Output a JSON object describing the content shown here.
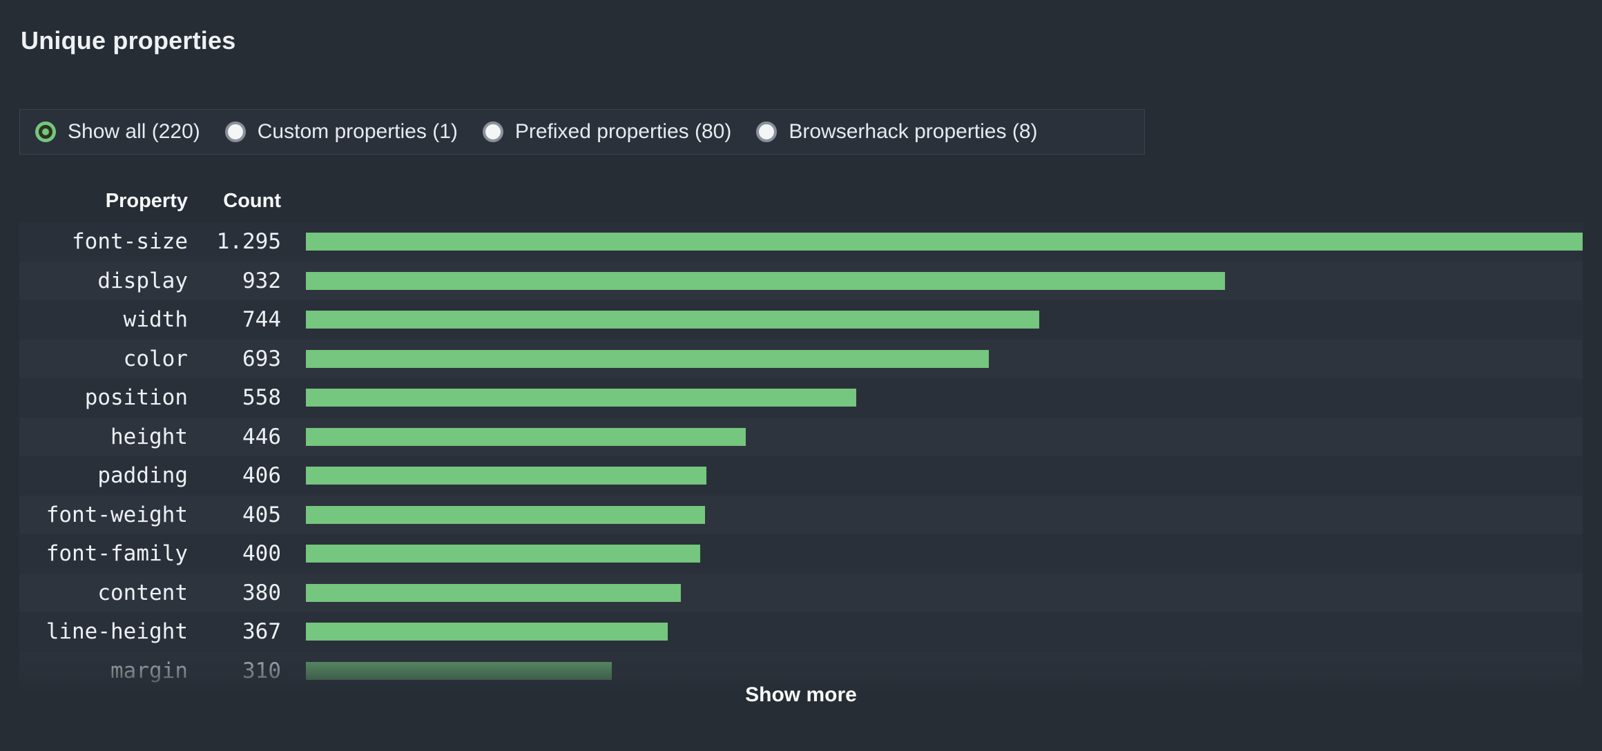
{
  "title": "Unique properties",
  "filters": [
    {
      "label": "Show all (220)",
      "selected": true
    },
    {
      "label": "Custom properties (1)",
      "selected": false
    },
    {
      "label": "Prefixed properties (80)",
      "selected": false
    },
    {
      "label": "Browserhack properties (8)",
      "selected": false
    }
  ],
  "table": {
    "headers": {
      "property": "Property",
      "count": "Count"
    },
    "max_value": 1295,
    "rows": [
      {
        "property": "font-size",
        "count": "1.295",
        "value": 1295
      },
      {
        "property": "display",
        "count": "932",
        "value": 932
      },
      {
        "property": "width",
        "count": "744",
        "value": 744
      },
      {
        "property": "color",
        "count": "693",
        "value": 693
      },
      {
        "property": "position",
        "count": "558",
        "value": 558
      },
      {
        "property": "height",
        "count": "446",
        "value": 446
      },
      {
        "property": "padding",
        "count": "406",
        "value": 406
      },
      {
        "property": "font-weight",
        "count": "405",
        "value": 405
      },
      {
        "property": "font-family",
        "count": "400",
        "value": 400
      },
      {
        "property": "content",
        "count": "380",
        "value": 380
      },
      {
        "property": "line-height",
        "count": "367",
        "value": 367
      },
      {
        "property": "margin",
        "count": "310",
        "value": 310,
        "faded": true
      }
    ]
  },
  "show_more_label": "Show more",
  "colors": {
    "background": "#272d35",
    "row_light": "#2e343e",
    "row_dark": "#2a303a",
    "bar_green": "#75c67e",
    "radio_selected": "#75c67e",
    "text": "#eef1f4"
  },
  "chart_data": {
    "type": "bar",
    "orientation": "horizontal",
    "categories": [
      "font-size",
      "display",
      "width",
      "color",
      "position",
      "height",
      "padding",
      "font-weight",
      "font-family",
      "content",
      "line-height",
      "margin"
    ],
    "values": [
      1295,
      932,
      744,
      693,
      558,
      446,
      406,
      405,
      400,
      380,
      367,
      310
    ],
    "title": "Unique properties",
    "xlabel": "Count",
    "ylabel": "Property",
    "xlim": [
      0,
      1295
    ],
    "legend": false,
    "grid": false
  }
}
